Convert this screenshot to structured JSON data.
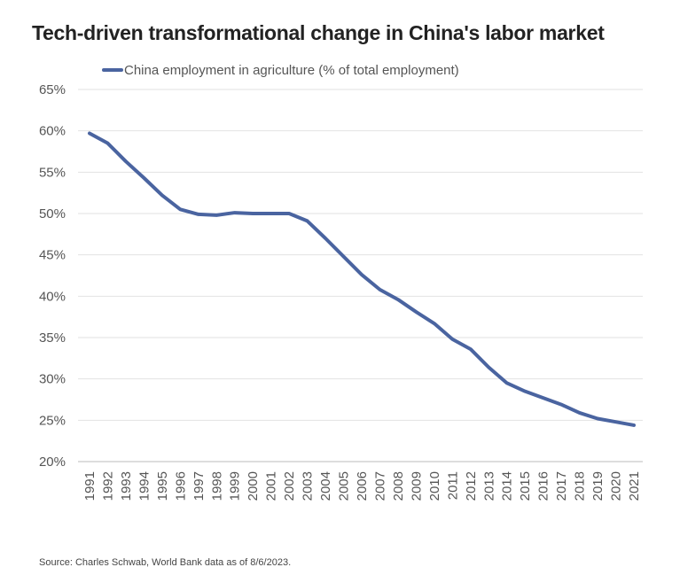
{
  "title": "Tech-driven transformational change in China's labor market",
  "source": "Source: Charles Schwab, World Bank data as of 8/6/2023.",
  "chart_data": {
    "type": "line",
    "title": "Tech-driven transformational change in China's labor market",
    "xlabel": "",
    "ylabel": "",
    "categories": [
      "1991",
      "1992",
      "1993",
      "1994",
      "1995",
      "1996",
      "1997",
      "1998",
      "1999",
      "2000",
      "2001",
      "2002",
      "2003",
      "2004",
      "2005",
      "2006",
      "2007",
      "2008",
      "2009",
      "2010",
      "2011",
      "2012",
      "2013",
      "2014",
      "2015",
      "2016",
      "2017",
      "2018",
      "2019",
      "2020",
      "2021"
    ],
    "series": [
      {
        "name": "China employment in agriculture (% of total employment)",
        "color": "#4a64a0",
        "values": [
          59.7,
          58.5,
          56.3,
          54.3,
          52.2,
          50.5,
          49.9,
          49.8,
          50.1,
          50.0,
          50.0,
          50.0,
          49.1,
          47.0,
          44.8,
          42.6,
          40.8,
          39.6,
          38.1,
          36.7,
          34.8,
          33.6,
          31.4,
          29.5,
          28.5,
          27.7,
          26.9,
          25.9,
          25.2,
          24.8,
          24.4
        ]
      }
    ],
    "yticks": [
      "20%",
      "25%",
      "30%",
      "35%",
      "40%",
      "45%",
      "50%",
      "55%",
      "60%",
      "65%"
    ],
    "ylim": [
      20,
      65
    ],
    "grid": true,
    "legend": "top-left"
  }
}
